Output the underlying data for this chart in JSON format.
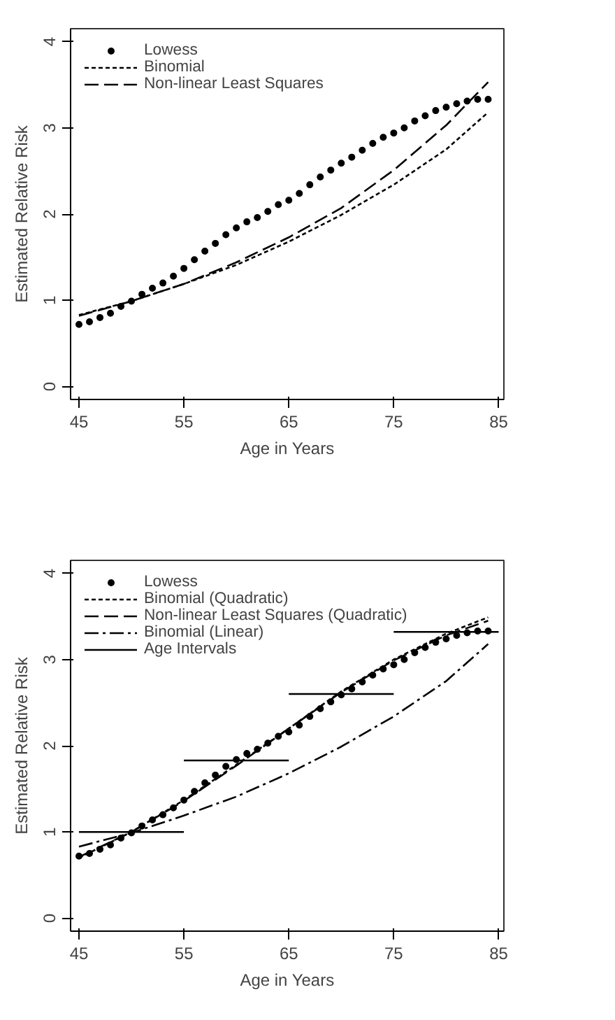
{
  "chart_data": [
    {
      "type": "line",
      "xlabel": "Age in Years",
      "ylabel": "Estimated Relative Risk",
      "xlim": [
        44.2,
        85.5
      ],
      "ylim": [
        -0.15,
        4.15
      ],
      "xticks": [
        45,
        55,
        65,
        75,
        85
      ],
      "yticks": [
        0,
        1,
        2,
        3,
        4
      ],
      "grid": false,
      "legend": "top left",
      "series": [
        {
          "name": "Lowess",
          "type": "scatter",
          "marker": "circle",
          "color": "#000000",
          "x": [
            45,
            46,
            47,
            48,
            49,
            50,
            51,
            52,
            53,
            54,
            55,
            56,
            57,
            58,
            59,
            60,
            61,
            62,
            63,
            64,
            65,
            66,
            67,
            68,
            69,
            70,
            71,
            72,
            73,
            74,
            75,
            76,
            77,
            78,
            79,
            80,
            81,
            82,
            83,
            84
          ],
          "values": [
            0.72,
            0.75,
            0.8,
            0.85,
            0.93,
            0.99,
            1.07,
            1.14,
            1.2,
            1.28,
            1.37,
            1.47,
            1.57,
            1.66,
            1.76,
            1.84,
            1.91,
            1.96,
            2.03,
            2.11,
            2.16,
            2.24,
            2.34,
            2.43,
            2.51,
            2.59,
            2.66,
            2.74,
            2.82,
            2.89,
            2.94,
            3.0,
            3.08,
            3.14,
            3.2,
            3.24,
            3.28,
            3.31,
            3.33,
            3.33
          ]
        },
        {
          "name": "Binomial",
          "line_style": "dotted",
          "color": "#000000",
          "x": [
            45,
            50,
            55,
            60,
            65,
            70,
            75,
            80,
            84
          ],
          "values": [
            0.83,
            0.99,
            1.19,
            1.41,
            1.68,
            1.99,
            2.34,
            2.75,
            3.18
          ]
        },
        {
          "name": "Non-linear Least Squares",
          "line_style": "dashed",
          "color": "#000000",
          "x": [
            45,
            50,
            55,
            60,
            65,
            70,
            75,
            80,
            84
          ],
          "values": [
            0.82,
            0.99,
            1.19,
            1.44,
            1.73,
            2.07,
            2.51,
            3.03,
            3.53
          ]
        }
      ]
    },
    {
      "type": "line",
      "xlabel": "Age in Years",
      "ylabel": "Estimated Relative Risk",
      "xlim": [
        44.2,
        85.5
      ],
      "ylim": [
        -0.15,
        4.15
      ],
      "xticks": [
        45,
        55,
        65,
        75,
        85
      ],
      "yticks": [
        0,
        1,
        2,
        3,
        4
      ],
      "grid": false,
      "legend": "top left",
      "series": [
        {
          "name": "Lowess",
          "type": "scatter",
          "marker": "circle",
          "color": "#000000",
          "x": [
            45,
            46,
            47,
            48,
            49,
            50,
            51,
            52,
            53,
            54,
            55,
            56,
            57,
            58,
            59,
            60,
            61,
            62,
            63,
            64,
            65,
            66,
            67,
            68,
            69,
            70,
            71,
            72,
            73,
            74,
            75,
            76,
            77,
            78,
            79,
            80,
            81,
            82,
            83,
            84
          ],
          "values": [
            0.72,
            0.75,
            0.8,
            0.85,
            0.93,
            0.99,
            1.07,
            1.14,
            1.2,
            1.28,
            1.37,
            1.47,
            1.57,
            1.66,
            1.76,
            1.84,
            1.91,
            1.96,
            2.03,
            2.11,
            2.16,
            2.24,
            2.34,
            2.43,
            2.51,
            2.59,
            2.66,
            2.74,
            2.82,
            2.89,
            2.94,
            3.0,
            3.08,
            3.14,
            3.2,
            3.24,
            3.28,
            3.31,
            3.33,
            3.33
          ]
        },
        {
          "name": "Binomial (Quadratic)",
          "line_style": "dotted",
          "color": "#000000",
          "x": [
            45,
            50,
            55,
            60,
            65,
            70,
            75,
            80,
            84
          ],
          "values": [
            0.7,
            1.0,
            1.37,
            1.78,
            2.2,
            2.63,
            3.0,
            3.3,
            3.49
          ]
        },
        {
          "name": "Non-linear Least Squares (Quadratic)",
          "line_style": "dashed",
          "color": "#000000",
          "x": [
            45,
            50,
            55,
            60,
            65,
            70,
            75,
            80,
            84
          ],
          "values": [
            0.71,
            1.0,
            1.36,
            1.77,
            2.2,
            2.62,
            2.99,
            3.28,
            3.45
          ]
        },
        {
          "name": "Binomial (Linear)",
          "line_style": "dashdot",
          "color": "#000000",
          "x": [
            45,
            50,
            55,
            60,
            65,
            70,
            75,
            80,
            84
          ],
          "values": [
            0.83,
            0.99,
            1.19,
            1.41,
            1.68,
            1.99,
            2.34,
            2.75,
            3.18
          ]
        },
        {
          "name": "Age Intervals",
          "line_style": "solid",
          "color": "#000000",
          "x": [
            45,
            55,
            null,
            55,
            65,
            null,
            65,
            75,
            null,
            75,
            85
          ],
          "values": [
            1.0,
            1.0,
            null,
            1.83,
            1.83,
            null,
            2.6,
            2.6,
            null,
            3.32,
            3.32
          ]
        }
      ]
    }
  ]
}
